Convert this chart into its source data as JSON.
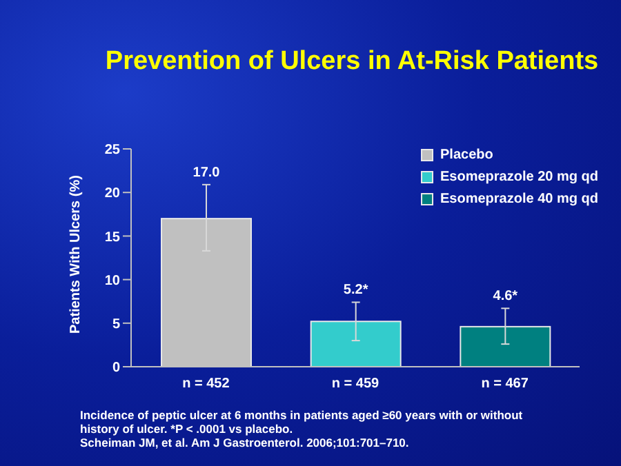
{
  "chart_data": {
    "type": "bar",
    "title": "Prevention of Ulcers in At-Risk Patients",
    "ylabel": "Patients With Ulcers (%)",
    "categories": [
      "n = 452",
      "n = 459",
      "n = 467"
    ],
    "series": [
      {
        "name": "Placebo",
        "color": "#c0c0c0",
        "values": [
          17.0,
          null,
          null
        ],
        "errors": [
          [
            13.3,
            20.9
          ],
          null,
          null
        ],
        "value_labels": [
          "17.0",
          null,
          null
        ]
      },
      {
        "name": "Esomeprazole 20 mg qd",
        "color": "#33cccc",
        "values": [
          null,
          5.2,
          null
        ],
        "errors": [
          null,
          [
            3.0,
            7.4
          ],
          null
        ],
        "value_labels": [
          null,
          "5.2*",
          null
        ]
      },
      {
        "name": "Esomeprazole 40 mg qd",
        "color": "#008080",
        "values": [
          null,
          null,
          4.6
        ],
        "errors": [
          null,
          null,
          [
            2.6,
            6.7
          ]
        ],
        "value_labels": [
          null,
          null,
          "4.6*"
        ]
      }
    ],
    "ylim": [
      0,
      25
    ],
    "yticks": [
      0,
      5,
      10,
      15,
      20,
      25
    ],
    "grid": false,
    "legend": "top right",
    "annotations": [
      "Incidence of peptic ulcer at 6 months in patients aged ≥60 years with or without history of ulcer. *P < .0001 vs placebo.",
      "Scheiman JM, et al. Am J Gastroenterol. 2006;101:701–710."
    ]
  }
}
